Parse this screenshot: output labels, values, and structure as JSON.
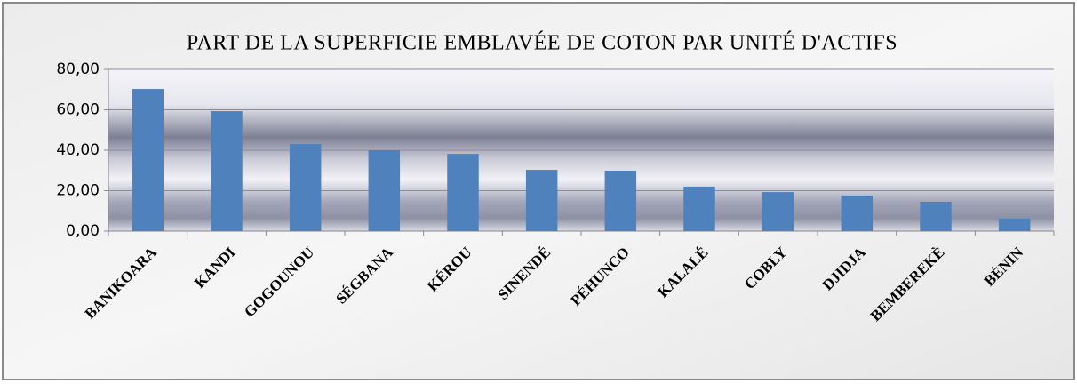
{
  "chart_data": {
    "type": "bar",
    "title": "PART DE LA SUPERFICIE EMBLAVÉE DE COTON PAR UNITÉ D'ACTIFS",
    "categories": [
      "BANIKOARA",
      "KANDI",
      "GOGOUNOU",
      "SÉGBANA",
      "KÉROU",
      "SINENDÉ",
      "PÉHUNCO",
      "KALALÉ",
      "COBLY",
      "DJIDJA",
      "BEMBEREKÈ",
      "BÉNIN"
    ],
    "values": [
      70.3,
      59.3,
      43.1,
      40.0,
      38.2,
      30.3,
      29.9,
      22.0,
      19.3,
      17.6,
      14.5,
      6.2
    ],
    "color": "#4f81bd",
    "ylim": [
      0,
      80
    ],
    "yticks": [
      {
        "value": 0,
        "label": "0,00"
      },
      {
        "value": 20,
        "label": "20,00"
      },
      {
        "value": 40,
        "label": "40,00"
      },
      {
        "value": 60,
        "label": "60,00"
      },
      {
        "value": 80,
        "label": "80,00"
      }
    ],
    "grid": true
  }
}
